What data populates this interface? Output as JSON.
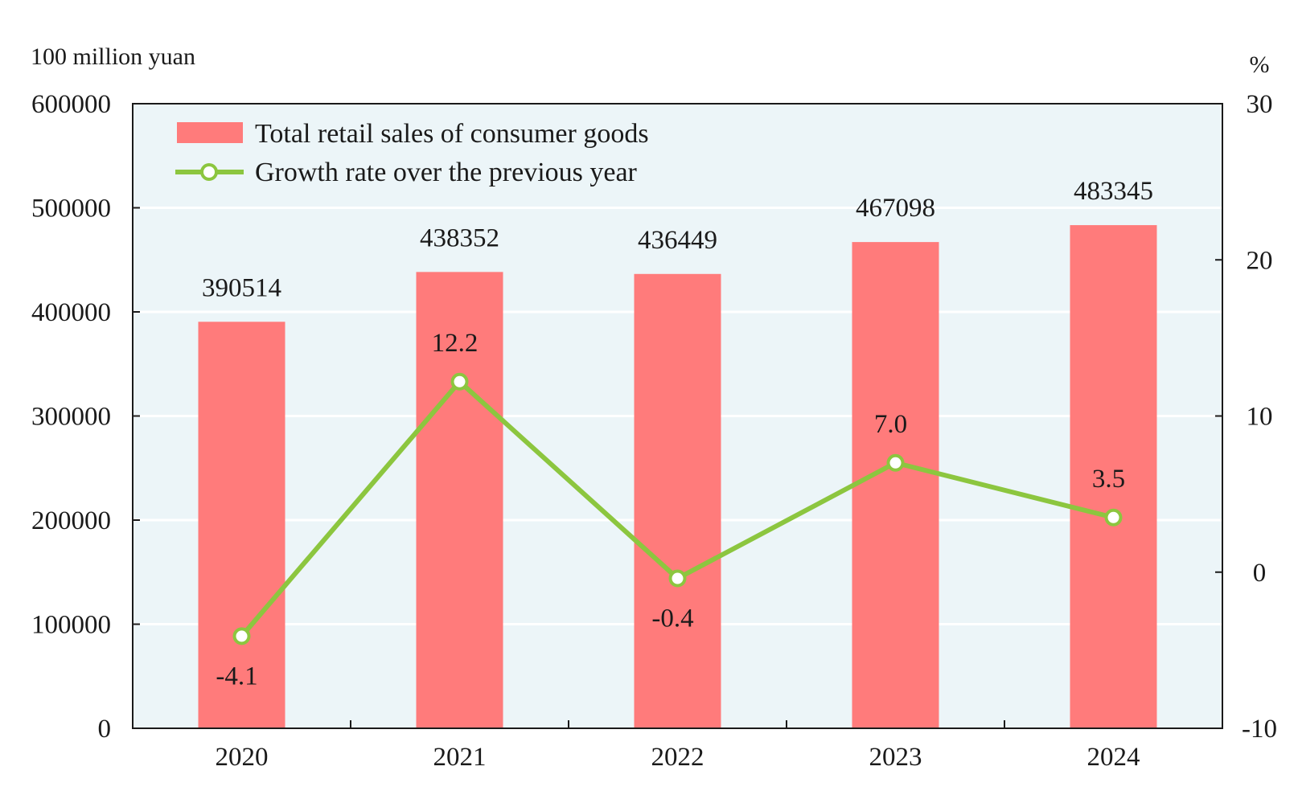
{
  "chart_data": {
    "type": "bar+line",
    "categories": [
      "2020",
      "2021",
      "2022",
      "2023",
      "2024"
    ],
    "series": [
      {
        "name": "Total retail sales of consumer goods",
        "type": "bar",
        "axis": "left",
        "values": [
          390514,
          438352,
          436449,
          467098,
          483345
        ],
        "labels": [
          "390514",
          "438352",
          "436449",
          "467098",
          "483345"
        ],
        "color": "#ff7b7b"
      },
      {
        "name": "Growth rate over the previous year",
        "type": "line",
        "axis": "right",
        "values": [
          -4.1,
          12.2,
          -0.4,
          7.0,
          3.5
        ],
        "labels": [
          "-4.1",
          "12.2",
          "-0.4",
          "7.0",
          "3.5"
        ],
        "color": "#8cc63f"
      }
    ],
    "left_axis": {
      "unit": "100 million yuan",
      "ylim": [
        0,
        600000
      ],
      "ticks": [
        "0",
        "100000",
        "200000",
        "300000",
        "400000",
        "500000",
        "600000"
      ]
    },
    "right_axis": {
      "unit": "%",
      "ylim": [
        -10,
        30
      ],
      "ticks": [
        "-10",
        "0",
        "10",
        "20",
        "30"
      ]
    },
    "plot_background": "#ecf5f8",
    "grid": true,
    "legend_position": "top-left"
  }
}
